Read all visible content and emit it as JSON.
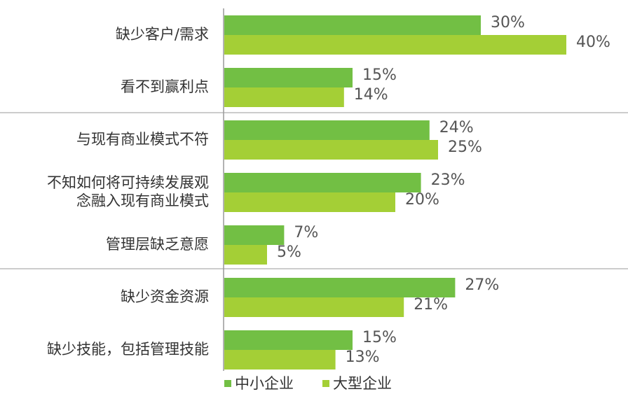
{
  "chart_data": {
    "type": "bar",
    "orientation": "horizontal",
    "categories": [
      "缺少客户/需求",
      "看不到赢利点",
      "与现有商业模式不符",
      "不知如何将可持续发展观\n念融入现有商业模式",
      "管理层缺乏意愿",
      "缺少资金资源",
      "缺少技能，包括管理技能"
    ],
    "series": [
      {
        "name": "中小企业",
        "color": "#72bf44",
        "values": [
          30,
          15,
          24,
          23,
          7,
          27,
          15
        ],
        "value_labels": [
          "30%",
          "15%",
          "24%",
          "23%",
          "7%",
          "27%",
          "15%"
        ]
      },
      {
        "name": "大型企业",
        "color": "#a4cf36",
        "values": [
          40,
          14,
          25,
          20,
          5,
          21,
          13
        ],
        "value_labels": [
          "40%",
          "14%",
          "25%",
          "20%",
          "5%",
          "21%",
          "13%"
        ]
      }
    ],
    "xlim": [
      0,
      40
    ],
    "legend": "bottom"
  }
}
